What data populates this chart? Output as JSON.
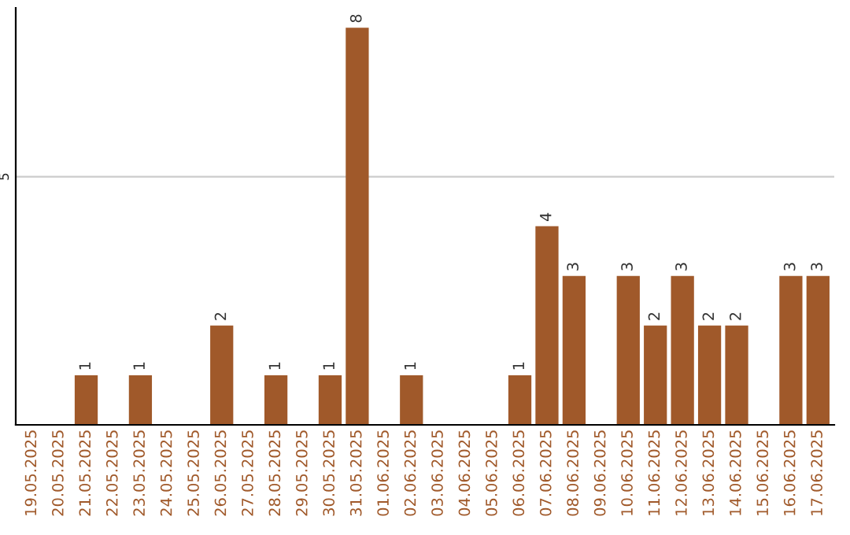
{
  "chart_data": {
    "type": "bar",
    "categories": [
      "19.05.2025",
      "20.05.2025",
      "21.05.2025",
      "22.05.2025",
      "23.05.2025",
      "24.05.2025",
      "25.05.2025",
      "26.05.2025",
      "27.05.2025",
      "28.05.2025",
      "29.05.2025",
      "30.05.2025",
      "31.05.2025",
      "01.06.2025",
      "02.06.2025",
      "03.06.2025",
      "04.06.2025",
      "05.06.2025",
      "06.06.2025",
      "07.06.2025",
      "08.06.2025",
      "09.06.2025",
      "10.06.2025",
      "11.06.2025",
      "12.06.2025",
      "13.06.2025",
      "14.06.2025",
      "15.06.2025",
      "16.06.2025",
      "17.06.2025"
    ],
    "values": [
      0,
      0,
      1,
      0,
      1,
      0,
      0,
      2,
      0,
      1,
      0,
      1,
      8,
      0,
      1,
      0,
      0,
      0,
      1,
      4,
      3,
      0,
      3,
      2,
      3,
      2,
      2,
      0,
      3,
      3
    ],
    "value_labels": [
      null,
      null,
      "1",
      null,
      "1",
      null,
      null,
      "2",
      null,
      "1",
      null,
      "1",
      "8",
      null,
      "1",
      null,
      null,
      null,
      "1",
      "4",
      "3",
      null,
      "3",
      "2",
      "3",
      "2",
      "2",
      null,
      "3",
      "3"
    ],
    "color": "#a0592a",
    "ylim": [
      0,
      8.4
    ],
    "yticks": [
      5
    ],
    "grid": "y"
  }
}
